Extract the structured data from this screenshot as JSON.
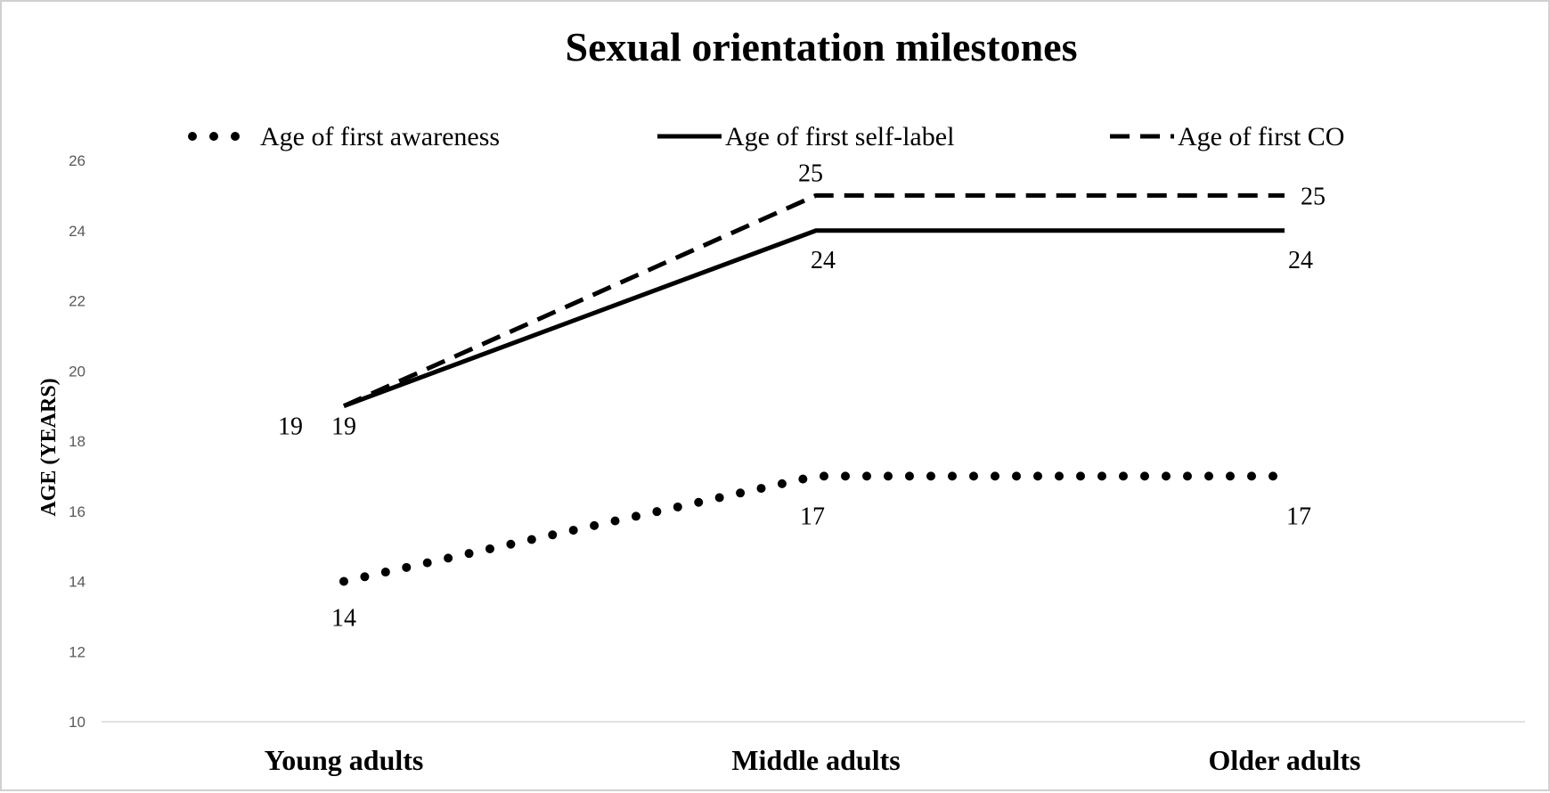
{
  "chart_data": {
    "type": "line",
    "title": "Sexual orientation milestones",
    "ylabel": "AGE (YEARS)",
    "xlabel": "",
    "ylim": [
      10,
      26
    ],
    "yticks": [
      10,
      12,
      14,
      16,
      18,
      20,
      22,
      24,
      26
    ],
    "grid": false,
    "legend_position": "top",
    "categories": [
      "Young adults",
      "Middle adults",
      "Older adults"
    ],
    "series": [
      {
        "name": "Age of first awareness",
        "style": "dotted",
        "color": "#000000",
        "values": [
          14,
          17,
          17
        ]
      },
      {
        "name": "Age of first self-label",
        "style": "solid",
        "color": "#000000",
        "values": [
          19,
          24,
          24
        ]
      },
      {
        "name": "Age of first CO",
        "style": "dashed",
        "color": "#000000",
        "values": [
          19,
          25,
          25
        ]
      }
    ]
  }
}
